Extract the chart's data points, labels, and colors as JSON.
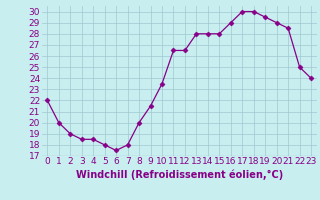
{
  "x": [
    0,
    1,
    2,
    3,
    4,
    5,
    6,
    7,
    8,
    9,
    10,
    11,
    12,
    13,
    14,
    15,
    16,
    17,
    18,
    19,
    20,
    21,
    22,
    23
  ],
  "y": [
    22,
    20,
    19,
    18.5,
    18.5,
    18,
    17.5,
    18,
    20,
    21.5,
    23.5,
    26.5,
    26.5,
    28,
    28,
    28,
    29,
    30,
    30,
    29.5,
    29,
    28.5,
    25,
    24
  ],
  "line_color": "#880088",
  "marker": "D",
  "marker_size": 2.5,
  "bg_color": "#c8eef0",
  "grid_color": "#a0c8d0",
  "xlabel": "Windchill (Refroidissement éolien,°C)",
  "xlabel_color": "#880088",
  "xlabel_fontsize": 7,
  "ylabel_ticks": [
    17,
    18,
    19,
    20,
    21,
    22,
    23,
    24,
    25,
    26,
    27,
    28,
    29,
    30
  ],
  "xlim": [
    -0.5,
    23.5
  ],
  "ylim": [
    17,
    30.5
  ],
  "tick_fontsize": 6.5,
  "tick_color": "#880088"
}
